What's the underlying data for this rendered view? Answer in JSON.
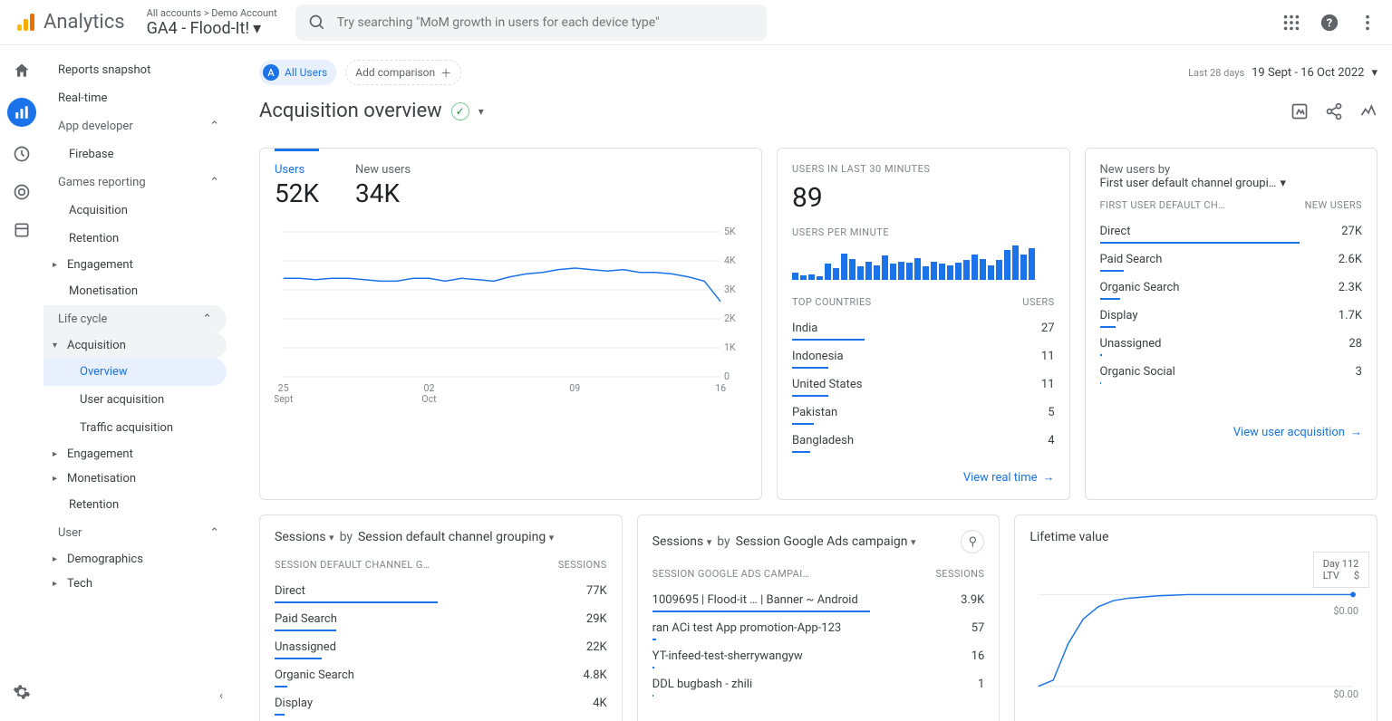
{
  "colors": {
    "accent": "#1a73e8",
    "muted": "#5f6368",
    "text": "#3c4043",
    "grid": "#e8eaed"
  },
  "topbar": {
    "product": "Analytics",
    "breadcrumb": "All accounts > Demo Account",
    "property": "GA4 - Flood-It!",
    "search_placeholder": "Try searching \"MoM growth in users for each device type\""
  },
  "rail": {
    "items": [
      "home",
      "reports",
      "explore",
      "advertising",
      "config"
    ]
  },
  "sidebar": {
    "top": [
      "Reports snapshot",
      "Real-time"
    ],
    "groups": [
      {
        "label": "App developer",
        "items": [
          "Firebase"
        ]
      },
      {
        "label": "Games reporting",
        "items": [
          "Acquisition",
          "Retention",
          "Engagement",
          "Monetisation"
        ],
        "expandable": [
          false,
          false,
          true,
          false
        ]
      },
      {
        "label": "Life cycle",
        "items": [
          "Acquisition",
          "Engagement",
          "Monetisation",
          "Retention"
        ],
        "subitems": {
          "Acquisition": [
            "Overview",
            "User acquisition",
            "Traffic acquisition"
          ]
        },
        "selected_sub": "Overview",
        "expand_marks": [
          true,
          true,
          true,
          false
        ]
      },
      {
        "label": "User",
        "items": [
          "Demographics",
          "Tech"
        ],
        "expandable": [
          true,
          true
        ]
      }
    ]
  },
  "filters": {
    "segment_badge": "A",
    "segment": "All Users",
    "add": "Add comparison"
  },
  "date": {
    "hint": "Last 28 days",
    "range": "19 Sept - 16 Oct 2022"
  },
  "page": {
    "title": "Acquisition overview"
  },
  "overview_card": {
    "tabs": [
      {
        "label": "Users",
        "value": "52K"
      },
      {
        "label": "New users",
        "value": "34K"
      }
    ],
    "active_tab": 0,
    "chart": {
      "xticks": [
        "25\nSept",
        "02\nOct",
        "09",
        "16"
      ],
      "yticks": [
        "0",
        "1K",
        "2K",
        "3K",
        "4K",
        "5K"
      ],
      "ylim": [
        0,
        5
      ],
      "series": [
        3.4,
        3.4,
        3.35,
        3.4,
        3.4,
        3.35,
        3.3,
        3.3,
        3.4,
        3.4,
        3.3,
        3.4,
        3.35,
        3.3,
        3.45,
        3.55,
        3.6,
        3.7,
        3.75,
        3.7,
        3.65,
        3.7,
        3.6,
        3.6,
        3.55,
        3.45,
        3.3,
        2.6
      ],
      "line_color": "#1a73e8",
      "grid_color": "#e8eaed"
    }
  },
  "realtime_card": {
    "title": "USERS IN LAST 30 MINUTES",
    "value": "89",
    "per_minute_label": "USERS PER MINUTE",
    "bars": [
      6,
      4,
      5,
      3,
      14,
      10,
      23,
      18,
      12,
      16,
      13,
      21,
      14,
      16,
      15,
      19,
      12,
      16,
      14,
      13,
      15,
      17,
      22,
      18,
      13,
      17,
      26,
      30,
      22,
      28
    ],
    "bar_max": 30,
    "table_head": [
      "TOP COUNTRIES",
      "USERS"
    ],
    "rows": [
      {
        "label": "India",
        "value": "27",
        "bar": 1.0
      },
      {
        "label": "Indonesia",
        "value": "11",
        "bar": 0.5
      },
      {
        "label": "United States",
        "value": "11",
        "bar": 0.5
      },
      {
        "label": "Pakistan",
        "value": "5",
        "bar": 0.3
      },
      {
        "label": "Bangladesh",
        "value": "4",
        "bar": 0.25
      }
    ],
    "link": "View real time"
  },
  "channels_card": {
    "title": "New users by",
    "dimension": "First user default channel groupi…",
    "table_head": [
      "FIRST USER DEFAULT CH…",
      "NEW USERS"
    ],
    "rows": [
      {
        "label": "Direct",
        "value": "27K",
        "bar": 1.0
      },
      {
        "label": "Paid Search",
        "value": "2.6K",
        "bar": 0.12
      },
      {
        "label": "Organic Search",
        "value": "2.3K",
        "bar": 0.1
      },
      {
        "label": "Display",
        "value": "1.7K",
        "bar": 0.08
      },
      {
        "label": "Unassigned",
        "value": "28",
        "bar": 0.01
      },
      {
        "label": "Organic Social",
        "value": "3",
        "bar": 0.005
      }
    ],
    "link": "View user acquisition"
  },
  "sessions_channel_card": {
    "metric": "Sessions",
    "by": "by",
    "dimension": "Session default channel grouping",
    "table_head": [
      "SESSION DEFAULT CHANNEL G…",
      "SESSIONS"
    ],
    "rows": [
      {
        "label": "Direct",
        "value": "77K",
        "bar": 1.0
      },
      {
        "label": "Paid Search",
        "value": "29K",
        "bar": 0.38
      },
      {
        "label": "Unassigned",
        "value": "22K",
        "bar": 0.29
      },
      {
        "label": "Organic Search",
        "value": "4.8K",
        "bar": 0.08
      },
      {
        "label": "Display",
        "value": "4K",
        "bar": 0.06
      }
    ]
  },
  "sessions_ads_card": {
    "metric": "Sessions",
    "by": "by",
    "dimension": "Session Google Ads campaign",
    "has_filter": true,
    "table_head": [
      "SESSION GOOGLE ADS CAMPAI…",
      "SESSIONS"
    ],
    "rows": [
      {
        "label": "1009695 | Flood-it … | Banner ~ Android",
        "value": "3.9K",
        "bar": 1.0
      },
      {
        "label": "ran ACi test App promotion-App-123",
        "value": "57",
        "bar": 0.02
      },
      {
        "label": "YT-infeed-test-sherrywangyw",
        "value": "16",
        "bar": 0.01
      },
      {
        "label": "DDL bugbash - zhili",
        "value": "1",
        "bar": 0.003
      }
    ]
  },
  "ltv_card": {
    "title": "Lifetime value",
    "tooltip": {
      "day_label": "Day 112",
      "ltv_label": "LTV",
      "ltv_val": "$"
    },
    "yticks": [
      "$0.00",
      "$0.00"
    ],
    "line": [
      0,
      0.05,
      0.35,
      0.55,
      0.65,
      0.7,
      0.72,
      0.73,
      0.74,
      0.745,
      0.75,
      0.75,
      0.75,
      0.75,
      0.75,
      0.75,
      0.75,
      0.75,
      0.75,
      0.75,
      0.75,
      0.75
    ],
    "line_color": "#1a73e8"
  }
}
